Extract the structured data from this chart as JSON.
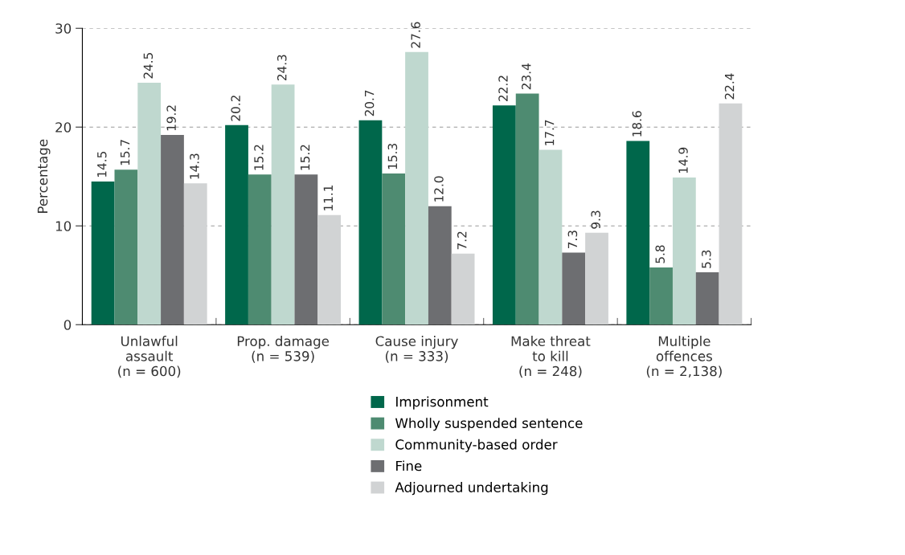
{
  "chart_data": {
    "type": "bar",
    "ylabel": "Percentage",
    "categories": [
      "Unlawful\nassault\n(n = 600)",
      "Prop. damage\n(n = 539)",
      "Cause injury\n(n = 333)",
      "Make threat\nto kill\n(n = 248)",
      "Multiple\noffences\n(n = 2,138)"
    ],
    "series": [
      {
        "name": "Imprisonment",
        "color": "#00674b",
        "values": [
          14.5,
          20.2,
          20.7,
          22.2,
          18.6
        ],
        "value_labels": [
          "14.5",
          "20.2",
          "20.7",
          "22.2",
          "18.6"
        ]
      },
      {
        "name": "Wholly suspended sentence",
        "color": "#4e8b71",
        "values": [
          15.7,
          15.2,
          15.3,
          23.4,
          5.8
        ],
        "value_labels": [
          "15.7",
          "15.2",
          "15.3",
          "23.4",
          "5.8"
        ]
      },
      {
        "name": "Community-based order",
        "color": "#bfd8cf",
        "values": [
          24.5,
          24.3,
          27.6,
          17.7,
          14.9
        ],
        "value_labels": [
          "24.5",
          "24.3",
          "27.6",
          "17.7",
          "14.9"
        ]
      },
      {
        "name": "Fine",
        "color": "#6d6e71",
        "values": [
          19.2,
          15.2,
          12.0,
          7.3,
          5.3
        ],
        "value_labels": [
          "19.2",
          "15.2",
          "12.0",
          "7.3",
          "5.3"
        ]
      },
      {
        "name": "Adjourned undertaking",
        "color": "#d1d3d4",
        "values": [
          14.3,
          11.1,
          7.2,
          9.3,
          22.4
        ],
        "value_labels": [
          "14.3",
          "11.1",
          "7.2",
          "9.3",
          "22.4"
        ]
      }
    ],
    "ylim": [
      0,
      30
    ],
    "yticks": [
      0,
      10,
      20,
      30
    ],
    "grid": "y",
    "legend": "bottom"
  }
}
